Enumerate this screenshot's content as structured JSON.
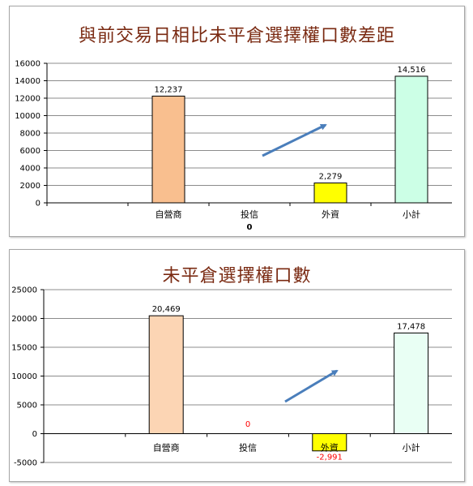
{
  "chart_data": [
    {
      "type": "bar",
      "title": "與前交易日相比未平倉選擇權口數差距",
      "categories": [
        "",
        "自營商",
        "投信",
        "外資",
        "小計"
      ],
      "values": [
        null,
        12237,
        0,
        2279,
        14516
      ],
      "value_labels": [
        "",
        "12,237",
        "0",
        "2,279",
        "14,516"
      ],
      "colors": [
        "",
        "#f9bf8f",
        "#ffffff",
        "#ffff00",
        "#ccffe6"
      ],
      "ylim": [
        0,
        16000
      ],
      "yticks": [
        "0",
        "2000",
        "4000",
        "6000",
        "8000",
        "10000",
        "12000",
        "14000",
        "16000"
      ],
      "grid": true,
      "legend": "none",
      "arrow_color": "#4a7ebb"
    },
    {
      "type": "bar",
      "title": "未平倉選擇權口數",
      "categories": [
        "",
        "自營商",
        "投信",
        "外資",
        "小計"
      ],
      "values": [
        null,
        20469,
        0,
        -2991,
        17478
      ],
      "value_labels": [
        "",
        "20,469",
        "0",
        "-2,991",
        "17,478"
      ],
      "colors": [
        "",
        "#fcd5b4",
        "#ffffff",
        "#ffff00",
        "#e9fff4"
      ],
      "negative_label_color": "#ff0000",
      "ylim": [
        -5000,
        25000
      ],
      "yticks": [
        "-5000",
        "0",
        "5000",
        "10000",
        "15000",
        "20000",
        "25000"
      ],
      "grid": true,
      "legend": "none",
      "arrow_color": "#4a7ebb"
    }
  ]
}
